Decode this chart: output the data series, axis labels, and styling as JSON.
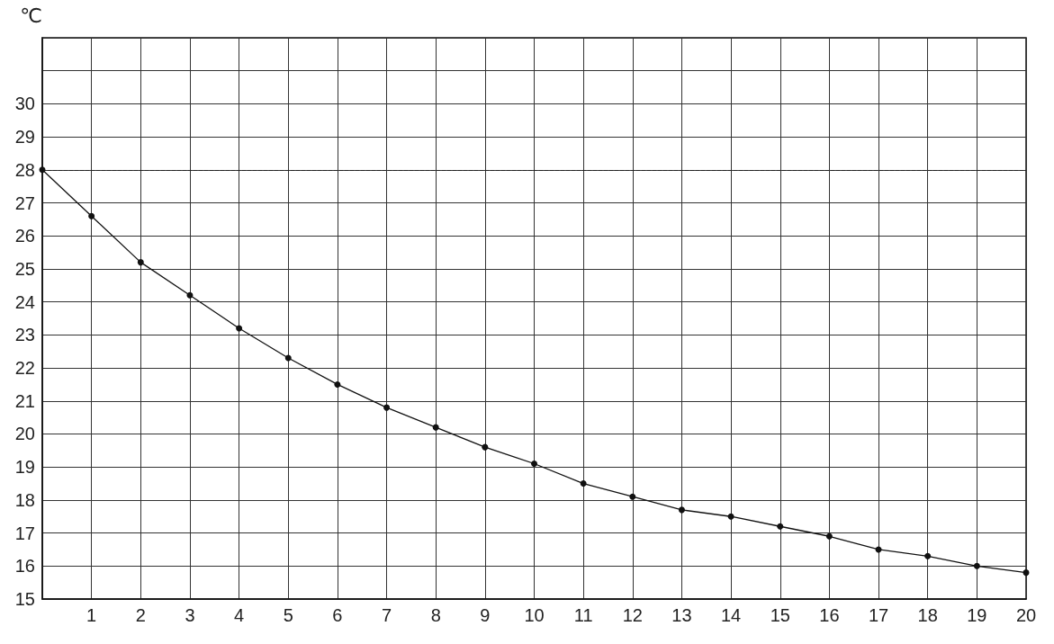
{
  "chart_data": {
    "type": "line",
    "ylabel": "℃",
    "x": [
      0,
      1,
      2,
      3,
      4,
      5,
      6,
      7,
      8,
      9,
      10,
      11,
      12,
      13,
      14,
      15,
      16,
      17,
      18,
      19,
      20
    ],
    "series": [
      {
        "color": "#111111",
        "values": [
          28.0,
          26.6,
          25.2,
          24.2,
          23.2,
          22.3,
          21.5,
          20.8,
          20.2,
          19.6,
          19.1,
          18.5,
          18.1,
          17.7,
          17.5,
          17.2,
          16.9,
          16.5,
          16.3,
          16.0,
          15.8
        ]
      }
    ],
    "xlim": [
      0,
      20
    ],
    "xticks": [
      {
        "value": 0,
        "label": null
      },
      1,
      2,
      3,
      4,
      5,
      6,
      7,
      8,
      9,
      10,
      11,
      12,
      13,
      14,
      15,
      16,
      17,
      18,
      19,
      20
    ],
    "ylim": [
      15,
      32
    ],
    "yticks": [
      15,
      16,
      17,
      18,
      19,
      20,
      21,
      22,
      23,
      24,
      25,
      26,
      27,
      28,
      29,
      30,
      {
        "value": 31,
        "label": null
      },
      {
        "value": 32,
        "label": null
      }
    ],
    "ref_lines": [
      {
        "axis": "y",
        "value": 28,
        "color": "#222222",
        "line_style": "dashed"
      }
    ],
    "grid": true,
    "marker": "circle",
    "line_style": "solid"
  }
}
